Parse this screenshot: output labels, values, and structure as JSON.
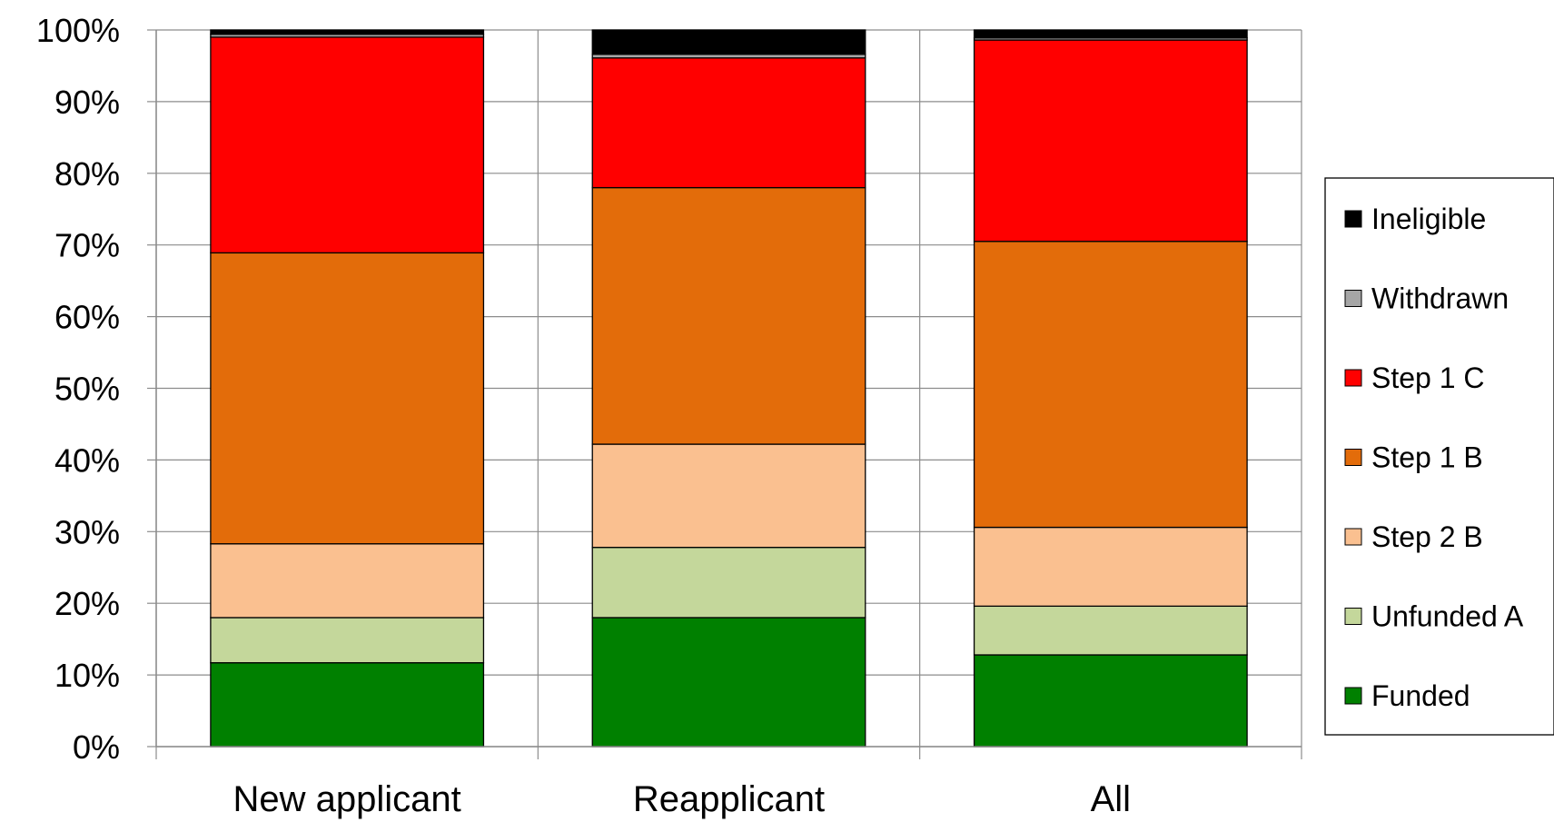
{
  "chart_data": {
    "type": "bar",
    "stacked": true,
    "normalized": true,
    "categories": [
      "New applicant",
      "Reapplicant",
      "All"
    ],
    "series": [
      {
        "name": "Funded",
        "color": "#008000",
        "values": [
          11.7,
          18.0,
          12.8
        ]
      },
      {
        "name": "Unfunded A",
        "color": "#C4D79B",
        "values": [
          6.3,
          9.8,
          6.8
        ]
      },
      {
        "name": "Step 2 B",
        "color": "#FAC090",
        "values": [
          10.3,
          14.4,
          11.0
        ]
      },
      {
        "name": "Step 1 B",
        "color": "#E36C0A",
        "values": [
          40.6,
          35.8,
          39.9
        ]
      },
      {
        "name": "Step 1 C",
        "color": "#FF0000",
        "values": [
          30.1,
          18.1,
          28.1
        ]
      },
      {
        "name": "Withdrawn",
        "color": "#A6A6A6",
        "values": [
          0.4,
          0.5,
          0.3
        ]
      },
      {
        "name": "Ineligible",
        "color": "#000000",
        "values": [
          0.6,
          3.4,
          1.1
        ]
      }
    ],
    "ylim": [
      0,
      100
    ],
    "yticks": [
      "0%",
      "10%",
      "20%",
      "30%",
      "40%",
      "50%",
      "60%",
      "70%",
      "80%",
      "90%",
      "100%"
    ],
    "grid": true,
    "legend_position": "right",
    "legend_order": [
      "Ineligible",
      "Withdrawn",
      "Step 1 C",
      "Step 1 B",
      "Step 2 B",
      "Unfunded A",
      "Funded"
    ],
    "title": "",
    "xlabel": "",
    "ylabel": ""
  }
}
